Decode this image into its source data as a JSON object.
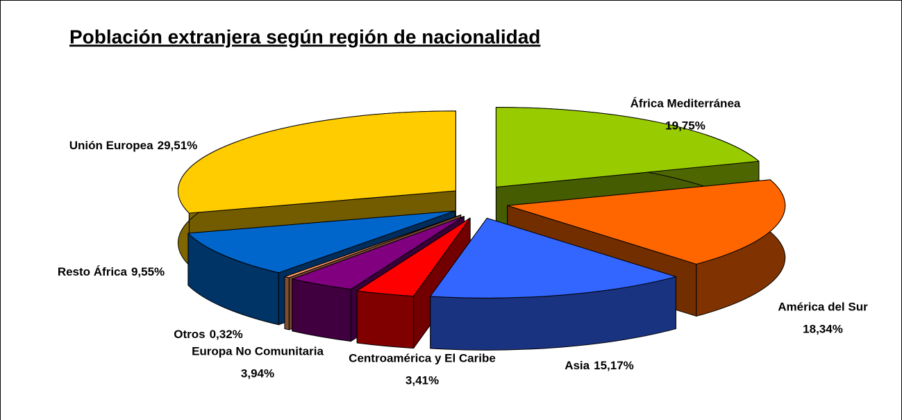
{
  "chart_data": {
    "type": "pie3d",
    "title": "Población extranjera según región de nacionalidad",
    "categories": [
      "África Mediterránea",
      "América del Sur",
      "Asia",
      "Centroamérica y El Caribe",
      "Europa No Comunitaria",
      "Otros",
      "Resto África",
      "Unión Europea"
    ],
    "values": [
      19.75,
      18.34,
      15.17,
      3.41,
      3.94,
      0.32,
      9.55,
      29.51
    ],
    "value_labels": [
      "19,75%",
      "18,34%",
      "15,17%",
      "3,41%",
      "3,94%",
      "0,32%",
      "9,55%",
      "29,51%"
    ],
    "colors": [
      "#99cc00",
      "#ff6600",
      "#3366ff",
      "#ff0000",
      "#800080",
      "#ff9966",
      "#0066cc",
      "#ffcc00"
    ]
  }
}
